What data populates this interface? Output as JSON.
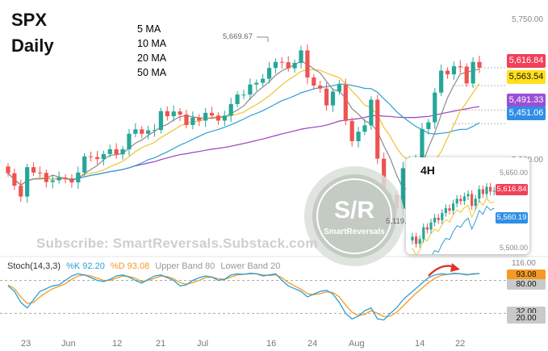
{
  "title_line1": "SPX",
  "title_line2": "Daily",
  "ma_legend": [
    {
      "label": "5 MA",
      "color": "#8a8a8a"
    },
    {
      "label": "10 MA",
      "color": "#f2c230"
    },
    {
      "label": "20 MA",
      "color": "#2a9fd6"
    },
    {
      "label": "50 MA",
      "color": "#9b3fc0"
    }
  ],
  "watermark": "Subscribe: SmartReversals.Substack.com",
  "logo": {
    "big": "S/R",
    "small": "SmartReversals"
  },
  "colors": {
    "up": "#26a69a",
    "down": "#ef5350"
  },
  "chart_data": [
    {
      "type": "candlestick",
      "title": "SPX Daily",
      "ylim": [
        5100,
        5760
      ],
      "price_axis_labels": [
        "5,750.00",
        "5,300.00"
      ],
      "date_labels": [
        "23",
        "Jun",
        "12",
        "21",
        "Jul",
        "16",
        "24",
        "Aug",
        "14",
        "22"
      ],
      "annotations": {
        "high_label": "5,669.67",
        "low_label": "5,119.26"
      },
      "price_tags": [
        {
          "label": "5,616.84",
          "value": 5616.84,
          "bg": "#f2405a",
          "fg": "#ffffff"
        },
        {
          "label": "5,563.54",
          "value": 5563.54,
          "bg": "#ffe01a",
          "fg": "#111111"
        },
        {
          "label": "5,491.33",
          "value": 5491.33,
          "bg": "#9b4fd6",
          "fg": "#ffffff"
        },
        {
          "label": "5,451.06",
          "value": 5451.06,
          "bg": "#2f8fe6",
          "fg": "#ffffff"
        }
      ],
      "close": [
        5304,
        5267,
        5235,
        5322,
        5306,
        5305,
        5278,
        5283,
        5291,
        5287,
        5277,
        5306,
        5354,
        5352,
        5346,
        5361,
        5375,
        5360,
        5375,
        5421,
        5434,
        5421,
        5431,
        5432,
        5488,
        5473,
        5487,
        5478,
        5447,
        5469,
        5460,
        5483,
        5475,
        5460,
        5475,
        5509,
        5537,
        5537,
        5567,
        5572,
        5584,
        5616,
        5634,
        5633,
        5615,
        5631,
        5668,
        5588,
        5564,
        5555,
        5505,
        5546,
        5566,
        5459,
        5399,
        5427,
        5446,
        5522,
        5347,
        5186,
        5240,
        5199,
        5319,
        5344,
        5345,
        5435,
        5455,
        5543,
        5608,
        5597,
        5621,
        5620,
        5570,
        5634,
        5616.84
      ],
      "series": [
        {
          "name": "5 MA",
          "color": "#8a8a8a"
        },
        {
          "name": "10 MA",
          "color": "#f2c230"
        },
        {
          "name": "20 MA",
          "color": "#2a9fd6"
        },
        {
          "name": "50 MA",
          "color": "#9b3fc0"
        }
      ]
    },
    {
      "type": "line",
      "title": "Stoch(14,3,3)",
      "legend": [
        {
          "label": "Stoch(14,3,3)",
          "color": "#333333"
        },
        {
          "label": "%K 92.20",
          "color": "#2a9fd6"
        },
        {
          "label": "%D 93.08",
          "color": "#f59a23"
        },
        {
          "label": "Upper Band 80",
          "color": "#999999"
        },
        {
          "label": "Lower Band 20",
          "color": "#999999"
        }
      ],
      "ylim": [
        0,
        116
      ],
      "axis_labels": [
        "116.00",
        "93.08",
        "80.00",
        "32.00",
        "20.00"
      ],
      "bands": {
        "upper": 80,
        "lower": 20
      },
      "k": [
        70,
        60,
        40,
        30,
        45,
        60,
        65,
        70,
        72,
        80,
        88,
        92,
        90,
        85,
        80,
        78,
        82,
        88,
        90,
        86,
        80,
        75,
        82,
        88,
        90,
        85,
        80,
        70,
        72,
        80,
        85,
        88,
        86,
        80,
        82,
        90,
        92,
        91,
        93,
        92,
        88,
        90,
        92,
        80,
        70,
        65,
        60,
        50,
        55,
        60,
        62,
        55,
        40,
        20,
        10,
        15,
        25,
        30,
        10,
        8,
        20,
        30,
        45,
        55,
        65,
        75,
        85,
        90,
        92,
        91,
        93,
        92,
        90,
        92,
        92.2
      ],
      "d": [
        72,
        65,
        50,
        38,
        40,
        50,
        58,
        65,
        69,
        74,
        82,
        88,
        90,
        88,
        84,
        80,
        80,
        84,
        88,
        87,
        84,
        78,
        80,
        84,
        88,
        87,
        83,
        76,
        73,
        76,
        80,
        85,
        86,
        83,
        82,
        86,
        90,
        91,
        92,
        92,
        90,
        89,
        90,
        85,
        76,
        70,
        64,
        56,
        54,
        56,
        59,
        58,
        50,
        35,
        22,
        16,
        18,
        25,
        20,
        14,
        15,
        22,
        33,
        45,
        56,
        66,
        76,
        84,
        89,
        91,
        92,
        92,
        91,
        91,
        93.08
      ]
    },
    {
      "type": "candlestick",
      "title": "4H",
      "axis_labels": [
        "5,650.00",
        "5,500.00"
      ],
      "price_tags": [
        {
          "label": "5,616.84",
          "bg": "#f2405a",
          "fg": "#ffffff"
        },
        {
          "label": "5,560.19",
          "bg": "#2f8fe6",
          "fg": "#ffffff"
        }
      ]
    }
  ]
}
